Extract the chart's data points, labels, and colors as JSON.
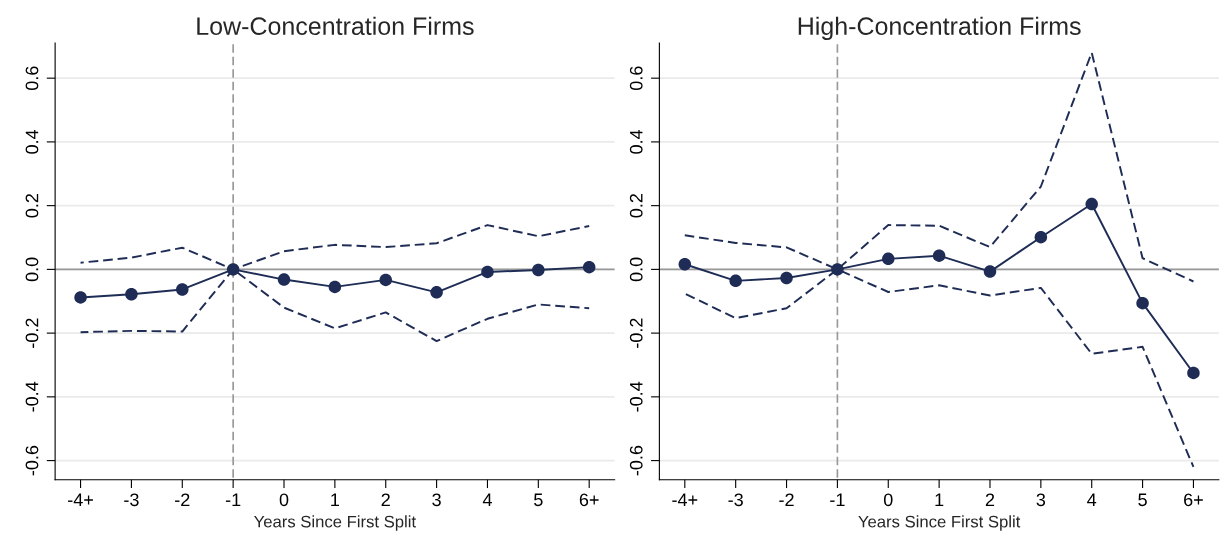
{
  "chart_data": [
    {
      "type": "line",
      "title": "Low-Concentration Firms",
      "xlabel": "Years Since First Split",
      "categories": [
        "-4+",
        "-3",
        "-2",
        "-1",
        "0",
        "1",
        "2",
        "3",
        "4",
        "5",
        "6+"
      ],
      "series": [
        {
          "color": "#1f2d56",
          "marker": "none",
          "line_style": "dashed",
          "values": [
            0.021,
            0.037,
            0.068,
            0,
            0.057,
            0.077,
            0.07,
            0.082,
            0.139,
            0.104,
            0.136
          ]
        },
        {
          "color": "#1f2d56",
          "marker": "none",
          "line_style": "dashed",
          "values": [
            -0.197,
            -0.193,
            -0.195,
            0,
            -0.12,
            -0.185,
            -0.135,
            -0.225,
            -0.155,
            -0.11,
            -0.122
          ]
        },
        {
          "color": "#1f2d56",
          "marker": "circle",
          "line_style": "solid",
          "values": [
            -0.088,
            -0.078,
            -0.063,
            0,
            -0.032,
            -0.055,
            -0.033,
            -0.072,
            -0.008,
            -0.002,
            0.007
          ]
        }
      ],
      "ylim": [
        -0.66,
        0.71
      ],
      "yticks": [
        {
          "value": -0.6,
          "label": "-0.6"
        },
        {
          "value": -0.4,
          "label": "-0.4"
        },
        {
          "value": -0.2,
          "label": "-0.2"
        },
        {
          "value": 0,
          "label": "0.0"
        },
        {
          "value": 0.2,
          "label": "0.2"
        },
        {
          "value": 0.4,
          "label": "0.4"
        },
        {
          "value": 0.6,
          "label": "0.6"
        }
      ],
      "grid": "y",
      "ref_lines": [
        {
          "axis": "y",
          "value": 0,
          "color": "#999999",
          "line_style": "solid"
        },
        {
          "axis": "x",
          "value": "-1",
          "color": "#999999",
          "line_style": "dotted"
        }
      ]
    },
    {
      "type": "line",
      "title": "High-Concentration Firms",
      "xlabel": "Years Since First Split",
      "categories": [
        "-4+",
        "-3",
        "-2",
        "-1",
        "0",
        "1",
        "2",
        "3",
        "4",
        "5",
        "6+"
      ],
      "series": [
        {
          "color": "#1f2d56",
          "marker": "none",
          "line_style": "dashed",
          "values": [
            0.107,
            0.083,
            0.069,
            0,
            0.139,
            0.137,
            0.07,
            0.26,
            0.68,
            0.035,
            -0.038
          ]
        },
        {
          "color": "#1f2d56",
          "marker": "none",
          "line_style": "dashed",
          "values": [
            -0.076,
            -0.153,
            -0.122,
            0,
            -0.071,
            -0.05,
            -0.082,
            -0.058,
            -0.265,
            -0.243,
            -0.62
          ]
        },
        {
          "color": "#1f2d56",
          "marker": "circle",
          "line_style": "solid",
          "values": [
            0.016,
            -0.036,
            -0.027,
            0,
            0.033,
            0.043,
            -0.007,
            0.101,
            0.205,
            -0.106,
            -0.325
          ]
        }
      ],
      "ylim": [
        -0.66,
        0.71
      ],
      "yticks": [
        {
          "value": -0.6,
          "label": "-0.6"
        },
        {
          "value": -0.4,
          "label": "-0.4"
        },
        {
          "value": -0.2,
          "label": "-0.2"
        },
        {
          "value": 0,
          "label": "0.0"
        },
        {
          "value": 0.2,
          "label": "0.2"
        },
        {
          "value": 0.4,
          "label": "0.4"
        },
        {
          "value": 0.6,
          "label": "0.6"
        }
      ],
      "grid": "y",
      "ref_lines": [
        {
          "axis": "y",
          "value": 0,
          "color": "#999999",
          "line_style": "solid"
        },
        {
          "axis": "x",
          "value": "-1",
          "color": "#999999",
          "line_style": "dotted"
        }
      ]
    }
  ]
}
